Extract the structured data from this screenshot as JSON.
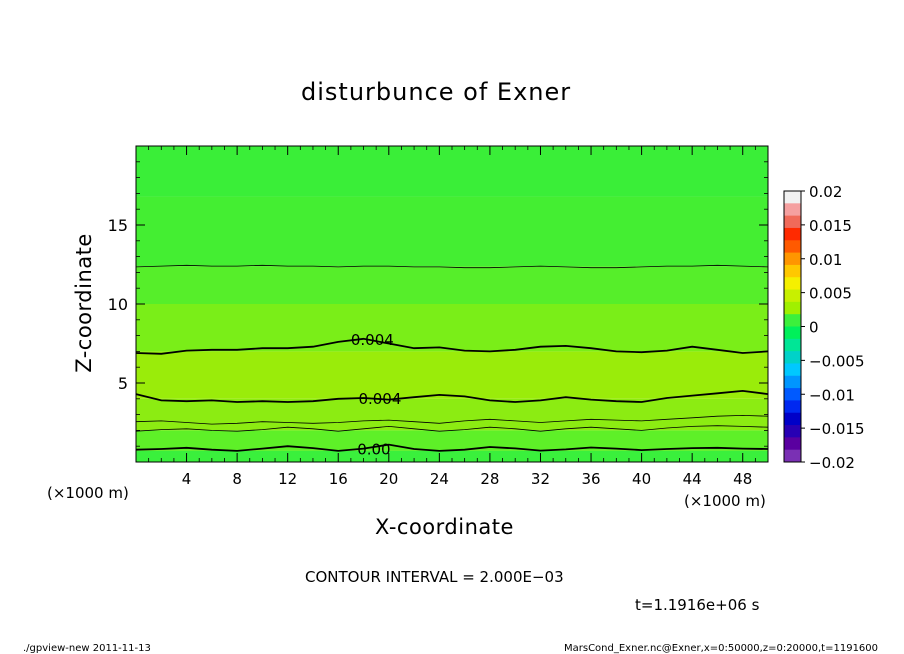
{
  "chart_data": {
    "type": "heatmap",
    "title": "disturbunce of Exner",
    "xlabel": "X-coordinate",
    "ylabel": "Z-coordinate",
    "x_unit": "(×1000 m)",
    "y_unit": "(×1000 m)",
    "xlim": [
      0,
      50
    ],
    "ylim": [
      0,
      20
    ],
    "x_ticks": [
      "4",
      "8",
      "12",
      "16",
      "20",
      "24",
      "28",
      "32",
      "36",
      "40",
      "44",
      "48"
    ],
    "y_ticks": [
      "5",
      "10",
      "15"
    ],
    "x_tick_values": [
      4,
      8,
      12,
      16,
      20,
      24,
      28,
      32,
      36,
      40,
      44,
      48
    ],
    "y_tick_values": [
      5,
      10,
      15
    ],
    "colorbar": {
      "ticks": [
        "0.02",
        "0.015",
        "0.01",
        "0.005",
        "0",
        "−0.005",
        "−0.01",
        "−0.015",
        "−0.02"
      ],
      "tick_values": [
        0.02,
        0.015,
        0.01,
        0.005,
        0,
        -0.005,
        -0.01,
        -0.015,
        -0.02
      ],
      "colors": [
        "#f1f1f1",
        "#f5a0a0",
        "#f06a5a",
        "#ff2a00",
        "#ff5a00",
        "#ff9600",
        "#ffc800",
        "#f5f000",
        "#c8f000",
        "#a0f000",
        "#3cf03c",
        "#00f05a",
        "#00e696",
        "#00d2c8",
        "#00c8ff",
        "#0096ff",
        "#005aff",
        "#0028f0",
        "#0000c8",
        "#2800b4",
        "#5a00a0",
        "#7a30b4"
      ]
    },
    "bands": [
      {
        "z_bottom": 0.0,
        "z_top": 0.7,
        "value": 0.0005,
        "color": "#3af03c"
      },
      {
        "z_bottom": 0.7,
        "z_top": 2.0,
        "value": 0.002,
        "color": "#5ef028"
      },
      {
        "z_bottom": 2.0,
        "z_top": 4.0,
        "value": 0.003,
        "color": "#8cec12"
      },
      {
        "z_bottom": 4.0,
        "z_top": 7.0,
        "value": 0.005,
        "color": "#9aec0a"
      },
      {
        "z_bottom": 7.0,
        "z_top": 10.0,
        "value": 0.0035,
        "color": "#7aee18"
      },
      {
        "z_bottom": 10.0,
        "z_top": 12.4,
        "value": 0.0025,
        "color": "#56ee2a"
      },
      {
        "z_bottom": 12.4,
        "z_top": 16.8,
        "value": 0.0015,
        "color": "#44ee32"
      },
      {
        "z_bottom": 16.8,
        "z_top": 20.0,
        "value": 0.0008,
        "color": "#3aee38"
      }
    ],
    "contours": [
      {
        "label": "0.00",
        "z": [
          0.78,
          0.82,
          0.9,
          0.78,
          0.7,
          0.85,
          1.0,
          0.88,
          0.7,
          0.85,
          1.1,
          0.82,
          0.7,
          0.78,
          0.95,
          0.86,
          0.72,
          0.8,
          0.92,
          0.85,
          0.75,
          0.82,
          0.88,
          0.9,
          0.85,
          0.82
        ],
        "bold": true
      },
      {
        "label": "",
        "z": [
          1.95,
          2.05,
          2.1,
          2.0,
          1.95,
          2.05,
          2.2,
          2.1,
          1.95,
          2.1,
          2.25,
          2.1,
          1.95,
          2.05,
          2.2,
          2.1,
          1.95,
          2.1,
          2.2,
          2.1,
          2.0,
          2.15,
          2.25,
          2.3,
          2.25,
          2.2
        ],
        "bold": false
      },
      {
        "label": "",
        "z": [
          2.55,
          2.6,
          2.5,
          2.4,
          2.45,
          2.55,
          2.5,
          2.45,
          2.5,
          2.6,
          2.65,
          2.55,
          2.45,
          2.6,
          2.7,
          2.6,
          2.5,
          2.6,
          2.7,
          2.65,
          2.6,
          2.7,
          2.8,
          2.9,
          2.95,
          2.9
        ],
        "bold": false
      },
      {
        "label": "0.004",
        "z": [
          4.3,
          3.9,
          3.85,
          3.9,
          3.8,
          3.85,
          3.8,
          3.85,
          4.0,
          4.05,
          3.95,
          4.1,
          4.25,
          4.15,
          3.9,
          3.8,
          3.9,
          4.1,
          3.95,
          3.85,
          3.8,
          4.05,
          4.2,
          4.35,
          4.5,
          4.3
        ],
        "bold": true
      },
      {
        "label": "0.004",
        "z": [
          6.9,
          6.85,
          7.05,
          7.1,
          7.1,
          7.2,
          7.2,
          7.3,
          7.6,
          7.8,
          7.5,
          7.2,
          7.25,
          7.05,
          7.0,
          7.1,
          7.3,
          7.35,
          7.2,
          7.0,
          6.95,
          7.05,
          7.3,
          7.1,
          6.9,
          7.0
        ],
        "bold": true
      },
      {
        "label": "",
        "z": [
          12.35,
          12.4,
          12.45,
          12.4,
          12.4,
          12.45,
          12.4,
          12.4,
          12.35,
          12.4,
          12.4,
          12.35,
          12.35,
          12.3,
          12.3,
          12.35,
          12.4,
          12.35,
          12.3,
          12.3,
          12.35,
          12.4,
          12.4,
          12.45,
          12.4,
          12.35
        ],
        "bold": false
      }
    ]
  },
  "contour_interval": "CONTOUR INTERVAL = 2.000E−03",
  "time_label": "t=1.1916e+06 s",
  "footer": {
    "left": "./gpview-new   2011-11-13",
    "right": "MarsCond_Exner.nc@Exner,x=0:50000,z=0:20000,t=1191600"
  }
}
